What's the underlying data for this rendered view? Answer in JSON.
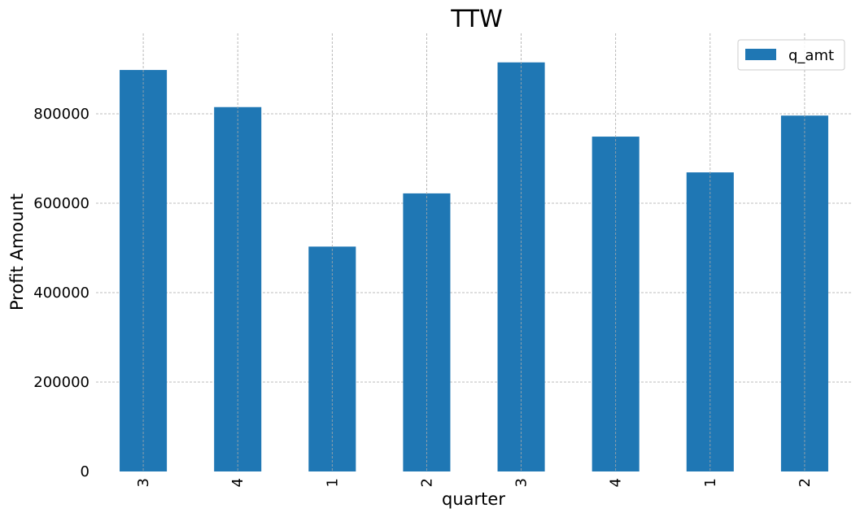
{
  "chart_data": {
    "type": "bar",
    "title": "TTW",
    "xlabel": "quarter",
    "ylabel": "Profit Amount",
    "categories": [
      "3",
      "4",
      "1",
      "2",
      "3",
      "4",
      "1",
      "2"
    ],
    "series": [
      {
        "name": "q_amt",
        "color": "#1f77b4",
        "values": [
          898000,
          815000,
          503000,
          622000,
          915000,
          749000,
          669000,
          796000
        ]
      }
    ],
    "ylim": [
      0,
      980000
    ],
    "yticks": [
      0,
      200000,
      400000,
      600000,
      800000
    ],
    "grid": true,
    "legend_position": "top-right"
  }
}
